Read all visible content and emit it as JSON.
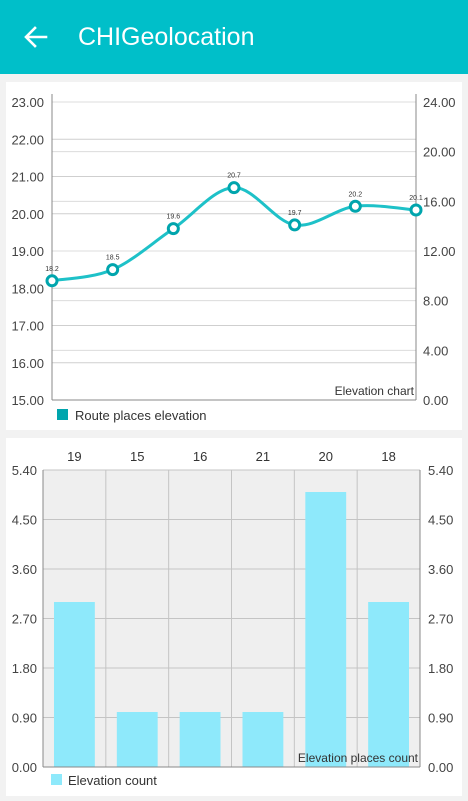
{
  "app": {
    "title": "CHIGeolocation",
    "back_icon": "arrow-left-icon",
    "toolbar_color": "#00bfc9"
  },
  "chart_data": [
    {
      "type": "line",
      "description": "Elevation chart",
      "legend": "Route places elevation",
      "legend_position": "bottom-left",
      "color": "#00a5ad",
      "left_axis": {
        "ylim": [
          15.0,
          23.0
        ],
        "ticks": [
          "15.00",
          "16.00",
          "17.00",
          "18.00",
          "19.00",
          "20.00",
          "21.00",
          "22.00",
          "23.00"
        ]
      },
      "right_axis": {
        "ylim": [
          0.0,
          24.0
        ],
        "ticks": [
          "0.00",
          "4.00",
          "8.00",
          "12.00",
          "16.00",
          "20.00",
          "24.00"
        ]
      },
      "x": [
        0,
        1,
        2,
        3,
        4,
        5,
        6
      ],
      "values": [
        18.2,
        18.5,
        19.6,
        20.7,
        19.7,
        20.2,
        20.1
      ],
      "point_labels": [
        "18.2",
        "18.5",
        "19.6",
        "20.7",
        "19.7",
        "20.2",
        "20.1"
      ],
      "grid": true
    },
    {
      "type": "bar",
      "description": "Elevation places count",
      "legend": "Elevation count",
      "legend_position": "bottom-left",
      "color": "#8ee9fb",
      "categories": [
        "19",
        "15",
        "16",
        "21",
        "20",
        "18"
      ],
      "values": [
        3,
        1,
        1,
        1,
        5,
        3
      ],
      "ylim": [
        0.0,
        5.4
      ],
      "ticks": [
        "0.00",
        "0.90",
        "1.80",
        "2.70",
        "3.60",
        "4.50",
        "5.40"
      ],
      "grid": true
    }
  ]
}
